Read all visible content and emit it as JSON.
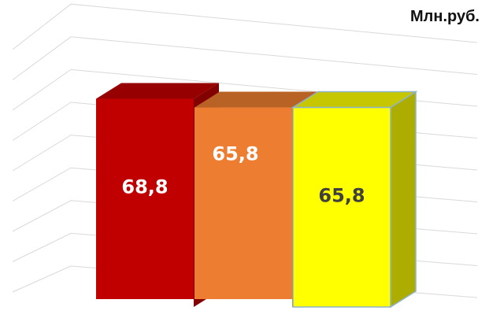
{
  "chart_data": {
    "type": "bar",
    "unit": "Млн.руб.",
    "categories": [
      "",
      "",
      ""
    ],
    "values": [
      68.8,
      65.8,
      65.8
    ],
    "data_labels": [
      "68,8",
      "65,8",
      "65,8"
    ],
    "colors": {
      "bar_1": "#C00000",
      "bar_2": "#ED7D31",
      "bar_3": "#FFFF00",
      "bar_3_border": "#8FB3C9",
      "label_1": "#FFFFFF",
      "label_2": "#FFFFFF",
      "label_3": "#404040",
      "gridline": "#D9D9D9"
    },
    "ylim": [
      0,
      80
    ],
    "grid": true,
    "legend": "none",
    "style": "3d-column"
  }
}
